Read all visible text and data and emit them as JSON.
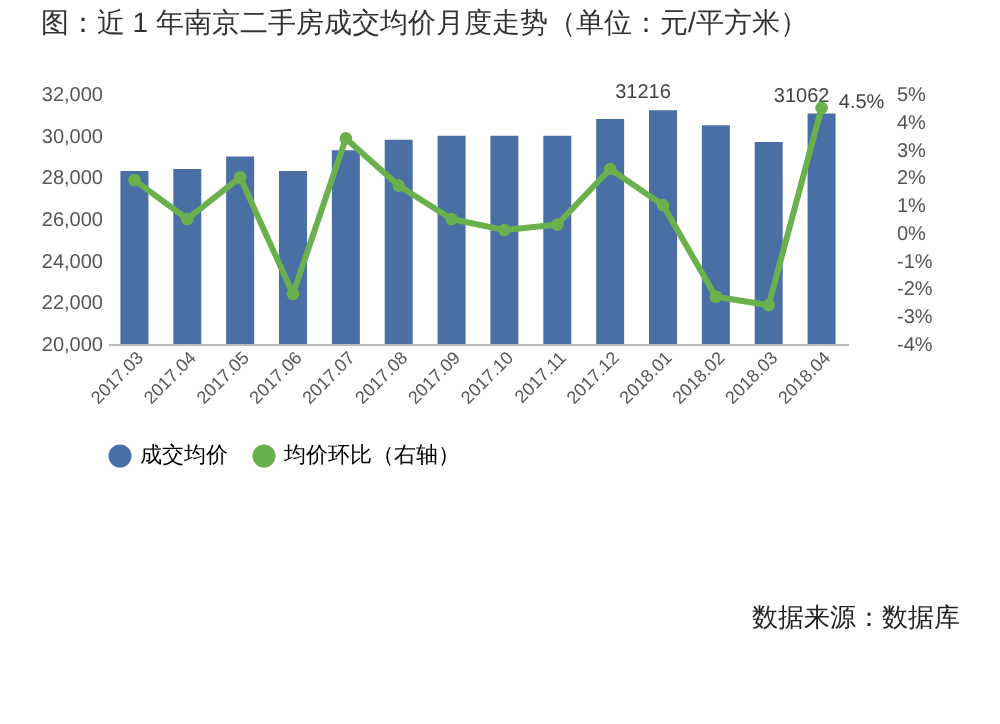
{
  "chart_data": {
    "type": "bar",
    "title": "图：近 1 年南京二手房成交均价月度走势（单位：元/平方米）",
    "categories": [
      "2017.03",
      "2017.04",
      "2017.05",
      "2017.06",
      "2017.07",
      "2017.08",
      "2017.09",
      "2017.10",
      "2017.11",
      "2017.12",
      "2018.01",
      "2018.02",
      "2018.03",
      "2018.04"
    ],
    "series": [
      {
        "name": "成交均价",
        "color": "#4a6fa5",
        "values": [
          28300,
          28400,
          29000,
          28300,
          29300,
          29800,
          30000,
          30000,
          30000,
          30800,
          31216,
          30500,
          29700,
          31062
        ],
        "value_labels": [
          null,
          null,
          null,
          null,
          null,
          null,
          null,
          null,
          null,
          null,
          "31216",
          null,
          null,
          "31062"
        ]
      },
      {
        "name": "均价环比（右轴）",
        "type": "line",
        "axis": "y2",
        "color": "#6ab04c",
        "values": [
          1.9,
          0.5,
          2.0,
          -2.2,
          3.4,
          1.7,
          0.5,
          0.1,
          0.3,
          2.3,
          1.0,
          -2.3,
          -2.6,
          4.5
        ],
        "value_labels": [
          null,
          null,
          null,
          null,
          null,
          null,
          null,
          null,
          null,
          null,
          null,
          null,
          null,
          "4.5%"
        ]
      }
    ],
    "ylim": [
      20000,
      32000
    ],
    "yticks": [
      {
        "value": 20000,
        "label": "20,000"
      },
      {
        "value": 22000,
        "label": "22,000"
      },
      {
        "value": 24000,
        "label": "24,000"
      },
      {
        "value": 26000,
        "label": "26,000"
      },
      {
        "value": 28000,
        "label": "28,000"
      },
      {
        "value": 30000,
        "label": "30,000"
      },
      {
        "value": 32000,
        "label": "32,000"
      }
    ],
    "y2lim": [
      -4,
      5
    ],
    "y2ticks": [
      {
        "value": -4,
        "label": "-4%"
      },
      {
        "value": -3,
        "label": "-3%"
      },
      {
        "value": -2,
        "label": "-2%"
      },
      {
        "value": -1,
        "label": "-1%"
      },
      {
        "value": 0,
        "label": "0%"
      },
      {
        "value": 1,
        "label": "1%"
      },
      {
        "value": 2,
        "label": "2%"
      },
      {
        "value": 3,
        "label": "3%"
      },
      {
        "value": 4,
        "label": "4%"
      },
      {
        "value": 5,
        "label": "5%"
      }
    ],
    "marker": "circle",
    "legend": "bottom",
    "annotations": [
      "数据来源：数据库"
    ]
  }
}
